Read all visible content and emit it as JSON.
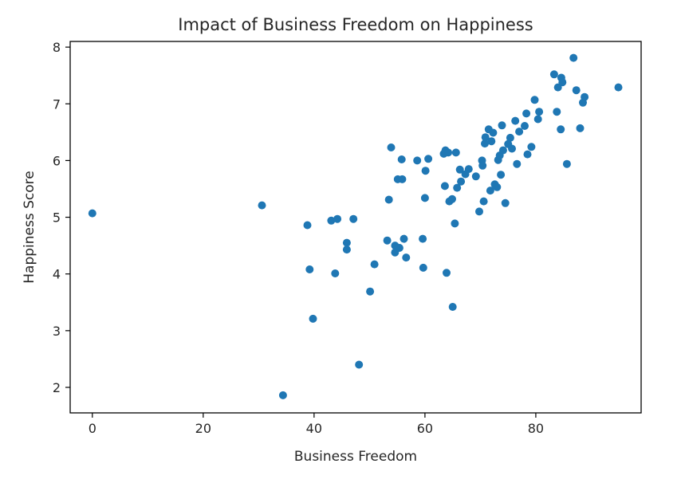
{
  "chart_data": {
    "type": "scatter",
    "title": "Impact of Business Freedom on Happiness",
    "xlabel": "Business Freedom",
    "ylabel": "Happiness Score",
    "xlim": [
      -4,
      99
    ],
    "ylim": [
      1.55,
      8.1
    ],
    "xticks": [
      0,
      20,
      40,
      60,
      80
    ],
    "yticks": [
      2,
      3,
      4,
      5,
      6,
      7,
      8
    ],
    "grid": false,
    "color": "#1f77b4",
    "x": [
      0,
      30.6,
      34.4,
      38.8,
      39.2,
      39.8,
      43.1,
      43.8,
      44.2,
      45.9,
      45.9,
      47.1,
      48.1,
      50.1,
      50.9,
      53.2,
      53.5,
      53.9,
      54.6,
      54.6,
      55.1,
      55.4,
      55.8,
      55.9,
      56.2,
      56.6,
      58.6,
      59.6,
      59.7,
      60.0,
      60.1,
      60.6,
      63.4,
      63.6,
      63.7,
      63.9,
      64.2,
      64.4,
      64.9,
      65.0,
      65.4,
      65.6,
      65.8,
      66.3,
      66.5,
      67.3,
      67.9,
      69.2,
      69.8,
      70.3,
      70.4,
      70.6,
      70.8,
      70.9,
      71.5,
      71.8,
      72.0,
      72.3,
      72.6,
      73.0,
      73.2,
      73.5,
      73.7,
      73.9,
      74.1,
      74.5,
      75.0,
      75.4,
      75.7,
      76.3,
      76.6,
      77.0,
      78.0,
      78.3,
      78.5,
      79.2,
      79.8,
      80.4,
      80.6,
      83.3,
      83.8,
      84.0,
      84.5,
      84.6,
      84.8,
      85.6,
      86.8,
      87.3,
      88.0,
      88.5,
      88.8,
      94.9
    ],
    "y": [
      5.07,
      5.21,
      1.86,
      4.86,
      4.08,
      3.21,
      4.94,
      4.01,
      4.97,
      4.55,
      4.43,
      4.97,
      2.4,
      3.69,
      4.17,
      4.59,
      5.31,
      6.23,
      4.5,
      4.38,
      5.67,
      4.46,
      6.02,
      5.67,
      4.62,
      4.29,
      6.0,
      4.62,
      4.11,
      5.34,
      5.82,
      6.03,
      6.12,
      5.55,
      6.18,
      4.02,
      6.14,
      5.28,
      5.32,
      3.42,
      4.89,
      6.14,
      5.52,
      5.84,
      5.63,
      5.76,
      5.85,
      5.72,
      5.1,
      6.0,
      5.91,
      5.28,
      6.3,
      6.41,
      6.55,
      5.47,
      6.34,
      6.49,
      5.58,
      5.53,
      6.01,
      6.09,
      5.75,
      6.62,
      6.18,
      5.25,
      6.29,
      6.4,
      6.21,
      6.7,
      5.94,
      6.51,
      6.61,
      6.83,
      6.11,
      6.24,
      7.07,
      6.73,
      6.86,
      7.52,
      6.86,
      7.29,
      6.55,
      7.46,
      7.38,
      5.94,
      7.81,
      7.24,
      6.57,
      7.02,
      7.12,
      7.29
    ]
  }
}
